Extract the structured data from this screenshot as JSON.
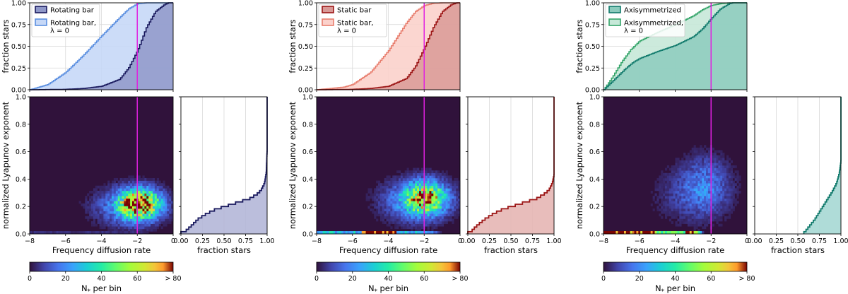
{
  "chart_data": [
    {
      "type": "area",
      "panel": "rotating",
      "cdf_top": {
        "ylabel": "fraction stars",
        "xlim": [
          -8,
          0
        ],
        "ylim": [
          0,
          1
        ],
        "xticks": [
          -8,
          -6,
          -4,
          -2,
          0
        ],
        "yticks": [
          "0.00",
          "0.25",
          "0.50",
          "0.75",
          "1.00"
        ],
        "legend": "top-left",
        "series": [
          {
            "name": "Rotating bar",
            "color": "#1a1a5e",
            "fill": "#8f98c9",
            "x": [
              -8,
              -6,
              -5,
              -4,
              -3,
              -2.5,
              -2,
              -1.5,
              -1,
              -0.5,
              -0.3,
              0
            ],
            "y": [
              0,
              0.005,
              0.015,
              0.04,
              0.12,
              0.25,
              0.45,
              0.72,
              0.9,
              0.98,
              1.0,
              1.0
            ]
          },
          {
            "name": "Rotating bar,\nλ = 0",
            "color": "#5b8fe0",
            "fill": "#c6d8f7",
            "x": [
              -8,
              -7,
              -6,
              -5,
              -4,
              -3,
              -2.5,
              -2,
              -1.5,
              -1,
              0
            ],
            "y": [
              0,
              0.06,
              0.2,
              0.4,
              0.62,
              0.83,
              0.93,
              0.99,
              1.0,
              1.0,
              1.0
            ]
          }
        ]
      },
      "heatmap": {
        "xlabel": "Frequency diffusion rate",
        "ylabel": "normalized Lyapunov exponent",
        "xlim": [
          -8,
          0
        ],
        "ylim": [
          0,
          1
        ],
        "xticks": [
          -8,
          -6,
          -4,
          -2,
          0
        ],
        "yticks": [
          "0.0",
          "0.2",
          "0.4",
          "0.6",
          "0.8",
          "1.0"
        ],
        "blobs": [
          {
            "x": -1.85,
            "y": 0.22,
            "sx": 0.75,
            "sy": 0.07,
            "v": 80
          },
          {
            "x": -2.6,
            "y": 0.2,
            "sx": 1.2,
            "sy": 0.09,
            "v": 18
          }
        ],
        "floor_strip": {
          "x_from": -8,
          "x_to": -1,
          "v": 4
        }
      },
      "cdf_right": {
        "xlabel": "fraction stars",
        "xticks": [
          "0.00",
          "0.25",
          "0.50",
          "0.75",
          "1.00"
        ],
        "color": "#1a1a5e",
        "fill": "#b4b7d8",
        "x": [
          0,
          0.05,
          0.12,
          0.2,
          0.3,
          0.4,
          0.5,
          0.6,
          0.7,
          0.8,
          0.88,
          0.93,
          0.97,
          0.99,
          1.0,
          1.0
        ],
        "y": [
          0,
          0.01,
          0.05,
          0.1,
          0.14,
          0.17,
          0.19,
          0.21,
          0.23,
          0.25,
          0.28,
          0.31,
          0.36,
          0.44,
          0.6,
          1.0
        ]
      },
      "colorbar": {
        "label": "N$_*$ per bin",
        "label_main": "N",
        "label_sub": "*",
        "label_rest": " per bin",
        "ticks": [
          "0",
          "20",
          "40",
          "60",
          "> 80"
        ],
        "range": [
          0,
          80
        ]
      },
      "vline_x": -2,
      "vline_color": "#e020e0"
    },
    {
      "type": "area",
      "panel": "static",
      "cdf_top": {
        "ylabel": "fraction stars",
        "xlim": [
          -8,
          0
        ],
        "ylim": [
          0,
          1
        ],
        "xticks": [
          -8,
          -6,
          -4,
          -2,
          0
        ],
        "yticks": [
          "0.00",
          "0.25",
          "0.50",
          "0.75",
          "1.00"
        ],
        "legend": "top-left",
        "series": [
          {
            "name": "Static bar",
            "color": "#9c1616",
            "fill": "#d99a97",
            "x": [
              -8,
              -6,
              -5,
              -4,
              -3,
              -2.5,
              -2,
              -1.5,
              -1,
              -0.5,
              -0.2,
              0
            ],
            "y": [
              0,
              0.005,
              0.015,
              0.04,
              0.13,
              0.27,
              0.48,
              0.72,
              0.9,
              0.98,
              1.0,
              1.0
            ]
          },
          {
            "name": "Static bar,\nλ = 0",
            "color": "#e87e6e",
            "fill": "#fbd1cb",
            "x": [
              -8,
              -6.5,
              -6,
              -5,
              -4,
              -3,
              -2.5,
              -2,
              -1.5,
              -1,
              0
            ],
            "y": [
              0,
              0.03,
              0.06,
              0.2,
              0.45,
              0.77,
              0.9,
              0.97,
              0.995,
              1.0,
              1.0
            ]
          }
        ]
      },
      "heatmap": {
        "xlabel": "Frequency diffusion rate",
        "ylabel": "normalized Lyapunov exponent",
        "xlim": [
          -8,
          0
        ],
        "ylim": [
          0,
          1
        ],
        "xticks": [
          -8,
          -6,
          -4,
          -2,
          0
        ],
        "yticks": [
          "0.0",
          "0.2",
          "0.4",
          "0.6",
          "0.8",
          "1.0"
        ],
        "blobs": [
          {
            "x": -1.9,
            "y": 0.26,
            "sx": 0.8,
            "sy": 0.08,
            "v": 62
          },
          {
            "x": -2.7,
            "y": 0.24,
            "sx": 1.2,
            "sy": 0.1,
            "v": 16
          }
        ],
        "floor_strip": {
          "x_from": -8,
          "x_to": -1,
          "v": 28
        }
      },
      "cdf_right": {
        "xlabel": "fraction stars",
        "xticks": [
          "0.00",
          "0.25",
          "0.50",
          "0.75",
          "1.00"
        ],
        "color": "#9c1616",
        "fill": "#e6b6b4",
        "x": [
          0,
          0.04,
          0.07,
          0.12,
          0.2,
          0.3,
          0.4,
          0.5,
          0.6,
          0.7,
          0.8,
          0.88,
          0.94,
          0.98,
          1.0,
          1.0
        ],
        "y": [
          0,
          0.01,
          0.03,
          0.06,
          0.1,
          0.14,
          0.17,
          0.19,
          0.21,
          0.23,
          0.25,
          0.28,
          0.31,
          0.36,
          0.42,
          1.0
        ]
      },
      "colorbar": {
        "label": "N$_*$ per bin",
        "label_main": "N",
        "label_sub": "*",
        "label_rest": " per bin",
        "ticks": [
          "0",
          "20",
          "40",
          "60",
          "> 80"
        ],
        "range": [
          0,
          80
        ]
      },
      "vline_x": -2,
      "vline_color": "#e020e0"
    },
    {
      "type": "area",
      "panel": "axisymmetrized",
      "cdf_top": {
        "ylabel": "fraction stars",
        "xlim": [
          -8,
          0
        ],
        "ylim": [
          0,
          1
        ],
        "xticks": [
          -8,
          -6,
          -4,
          -2,
          0
        ],
        "yticks": [
          "0.00",
          "0.25",
          "0.50",
          "0.75",
          "1.00"
        ],
        "legend": "top-left",
        "series": [
          {
            "name": "Axisymmetrized",
            "color": "#117a6c",
            "fill": "#8ccbbd",
            "x": [
              -8,
              -7.6,
              -7.2,
              -6.8,
              -6.4,
              -6,
              -5,
              -4,
              -3,
              -2.5,
              -2,
              -1.5,
              -1,
              -0.8,
              -0.5,
              0
            ],
            "y": [
              0,
              0.08,
              0.16,
              0.24,
              0.31,
              0.36,
              0.44,
              0.51,
              0.61,
              0.7,
              0.82,
              0.93,
              0.99,
              1.0,
              1.0,
              1.0
            ]
          },
          {
            "name": "Axisymmetrized,\nλ = 0",
            "color": "#35a56a",
            "fill": "#c6e8d8",
            "x": [
              -8,
              -7.5,
              -7,
              -6.5,
              -6,
              -5,
              -4,
              -3,
              -2.5,
              -2,
              -1.5,
              -1,
              0
            ],
            "y": [
              0,
              0.15,
              0.32,
              0.46,
              0.56,
              0.66,
              0.75,
              0.85,
              0.92,
              0.97,
              0.99,
              1.0,
              1.0
            ]
          }
        ]
      },
      "heatmap": {
        "xlabel": "Frequency diffusion rate",
        "ylabel": "normalized Lyapunov exponent",
        "xlim": [
          -8,
          0
        ],
        "ylim": [
          0,
          1
        ],
        "xticks": [
          -8,
          -6,
          -4,
          -2,
          0
        ],
        "yticks": [
          "0.0",
          "0.2",
          "0.4",
          "0.6",
          "0.8",
          "1.0"
        ],
        "blobs": [
          {
            "x": -2.3,
            "y": 0.36,
            "sx": 0.9,
            "sy": 0.14,
            "v": 14
          },
          {
            "x": -3.2,
            "y": 0.28,
            "sx": 1.3,
            "sy": 0.13,
            "v": 7
          }
        ],
        "floor_strip": {
          "x_from": -8,
          "x_to": -2.4,
          "v": 95
        },
        "floor_dip": {
          "x": -4.2,
          "w": 0.8,
          "v": 45
        }
      },
      "cdf_right": {
        "xlabel": "fraction stars",
        "xticks": [
          "0.00",
          "0.25",
          "0.50",
          "0.75",
          "1.00"
        ],
        "color": "#117a6c",
        "fill": "#a6d8d4",
        "x": [
          0.57,
          0.6,
          0.65,
          0.7,
          0.75,
          0.8,
          0.85,
          0.9,
          0.95,
          0.98,
          1.0,
          1.0
        ],
        "y": [
          0,
          0.02,
          0.06,
          0.1,
          0.15,
          0.2,
          0.25,
          0.3,
          0.36,
          0.43,
          0.52,
          1.0
        ]
      },
      "colorbar": {
        "label": "N$_*$ per bin",
        "label_main": "N",
        "label_sub": "*",
        "label_rest": " per bin",
        "ticks": [
          "0",
          "20",
          "40",
          "60",
          "> 80"
        ],
        "range": [
          0,
          80
        ]
      },
      "vline_x": -2,
      "vline_color": "#e020e0"
    }
  ]
}
